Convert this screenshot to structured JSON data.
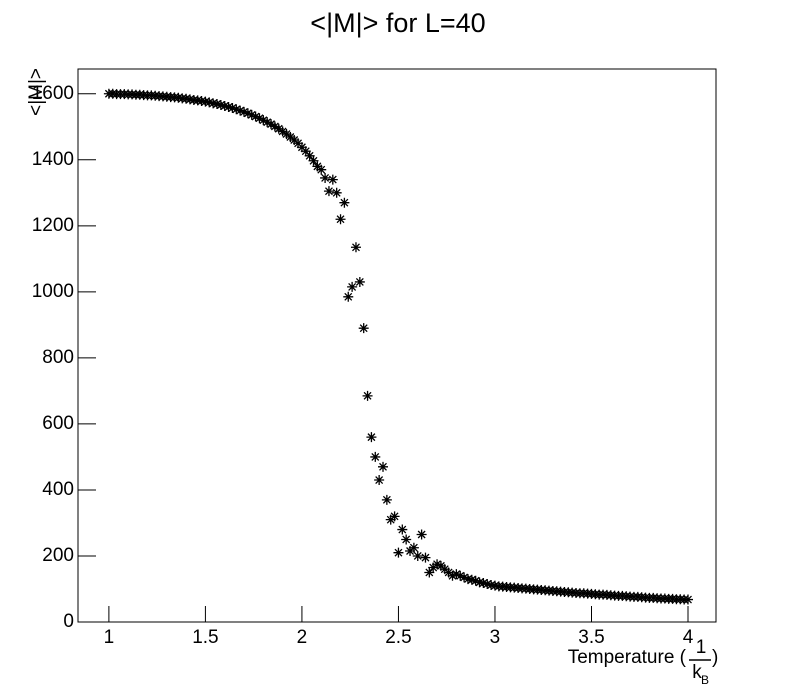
{
  "chart_data": {
    "type": "scatter",
    "title": "<|M|> for L=40",
    "y_label": "<|M|>",
    "x_label": {
      "prefix": "Temperature (",
      "numerator": "1",
      "denominator": "k",
      "subscript": "B",
      "suffix": ")"
    },
    "xlim": [
      0.84,
      4.145
    ],
    "ylim": [
      0,
      1675
    ],
    "xticks": [
      1,
      1.5,
      2,
      2.5,
      3,
      3.5,
      4
    ],
    "yticks": [
      0,
      200,
      400,
      600,
      800,
      1000,
      1200,
      1400,
      1600
    ],
    "marker": "asterisk",
    "color": "#000000",
    "x": [
      1.0,
      1.02,
      1.04,
      1.06,
      1.08,
      1.1,
      1.12,
      1.14,
      1.16,
      1.18,
      1.2,
      1.22,
      1.24,
      1.26,
      1.28,
      1.3,
      1.32,
      1.34,
      1.36,
      1.38,
      1.4,
      1.42,
      1.44,
      1.46,
      1.48,
      1.5,
      1.52,
      1.54,
      1.56,
      1.58,
      1.6,
      1.62,
      1.64,
      1.66,
      1.68,
      1.7,
      1.72,
      1.74,
      1.76,
      1.78,
      1.8,
      1.82,
      1.84,
      1.86,
      1.88,
      1.9,
      1.92,
      1.94,
      1.96,
      1.98,
      2.0,
      2.02,
      2.04,
      2.06,
      2.08,
      2.1,
      2.12,
      2.14,
      2.16,
      2.18,
      2.2,
      2.22,
      2.24,
      2.26,
      2.28,
      2.3,
      2.32,
      2.34,
      2.36,
      2.38,
      2.4,
      2.42,
      2.44,
      2.46,
      2.48,
      2.5,
      2.52,
      2.54,
      2.56,
      2.58,
      2.6,
      2.62,
      2.64,
      2.66,
      2.68,
      2.7,
      2.72,
      2.74,
      2.76,
      2.78,
      2.8,
      2.82,
      2.84,
      2.86,
      2.88,
      2.9,
      2.92,
      2.94,
      2.96,
      2.98,
      3.0,
      3.02,
      3.04,
      3.06,
      3.08,
      3.1,
      3.12,
      3.14,
      3.16,
      3.18,
      3.2,
      3.22,
      3.24,
      3.26,
      3.28,
      3.3,
      3.32,
      3.34,
      3.36,
      3.38,
      3.4,
      3.42,
      3.44,
      3.46,
      3.48,
      3.5,
      3.52,
      3.54,
      3.56,
      3.58,
      3.6,
      3.62,
      3.64,
      3.66,
      3.68,
      3.7,
      3.72,
      3.74,
      3.76,
      3.78,
      3.8,
      3.82,
      3.84,
      3.86,
      3.88,
      3.9,
      3.92,
      3.94,
      3.96,
      3.98,
      4.0
    ],
    "values": [
      1600,
      1600,
      1599,
      1599,
      1599,
      1598,
      1598,
      1597,
      1597,
      1596,
      1595,
      1595,
      1594,
      1593,
      1592,
      1591,
      1590,
      1589,
      1588,
      1586,
      1585,
      1583,
      1581,
      1580,
      1578,
      1576,
      1574,
      1571,
      1569,
      1566,
      1563,
      1560,
      1557,
      1553,
      1549,
      1545,
      1541,
      1536,
      1531,
      1526,
      1520,
      1514,
      1508,
      1501,
      1494,
      1486,
      1478,
      1469,
      1460,
      1450,
      1438,
      1426,
      1412,
      1397,
      1380,
      1370,
      1345,
      1305,
      1340,
      1300,
      1220,
      1270,
      985,
      1015,
      1135,
      1030,
      890,
      685,
      560,
      500,
      430,
      470,
      370,
      310,
      320,
      210,
      280,
      250,
      215,
      225,
      200,
      265,
      195,
      150,
      165,
      175,
      170,
      160,
      150,
      140,
      145,
      140,
      135,
      130,
      128,
      125,
      120,
      118,
      115,
      112,
      110,
      108,
      107,
      106,
      105,
      104,
      103,
      102,
      101,
      100,
      99,
      98,
      97,
      96,
      95,
      94,
      93,
      92,
      91,
      90,
      89,
      88,
      87,
      87,
      86,
      85,
      84,
      83,
      83,
      82,
      81,
      80,
      79,
      79,
      78,
      77,
      76,
      76,
      75,
      74,
      73,
      73,
      72,
      71,
      71,
      70,
      70,
      69,
      69,
      68,
      68
    ]
  }
}
